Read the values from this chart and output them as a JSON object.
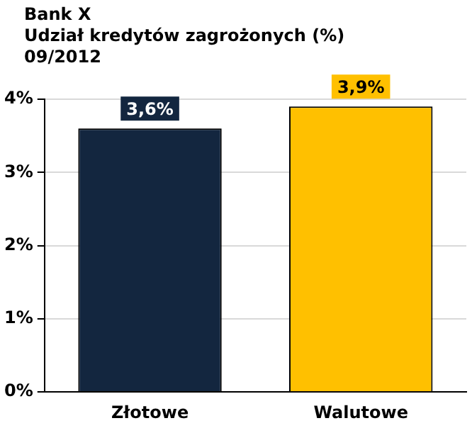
{
  "chart_data": {
    "type": "bar",
    "title": "Bank X",
    "subtitle": "Udział kredytów zagrożonych (%)",
    "annotations": [
      "09/2012"
    ],
    "categories": [
      "Złotowe",
      "Walutowe"
    ],
    "values": [
      3.6,
      3.9
    ],
    "colors": [
      "#13263f",
      "#ffc000"
    ],
    "value_labels": [
      "3,6%",
      "3,9%"
    ],
    "ylim": [
      0,
      4
    ],
    "yticks": [
      {
        "value": 0,
        "label": "0%"
      },
      {
        "value": 1,
        "label": "1%"
      },
      {
        "value": 2,
        "label": "2%"
      },
      {
        "value": 3,
        "label": "3%"
      },
      {
        "value": 4,
        "label": "4%"
      }
    ],
    "grid": "y",
    "legend": false
  }
}
